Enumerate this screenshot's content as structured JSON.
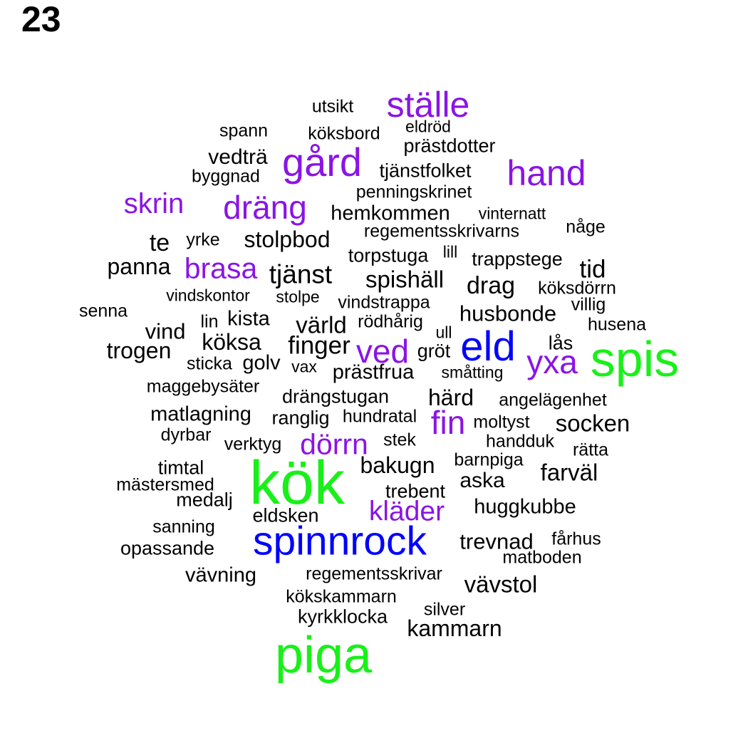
{
  "page_number": "23",
  "colors": {
    "black": "#000000",
    "purple": "#8a14e6",
    "blue": "#0000ff",
    "green": "#19f019"
  },
  "words": [
    {
      "text": "ställe",
      "color": "purple"
    },
    {
      "text": "utsikt",
      "color": "black"
    },
    {
      "text": "eldröd",
      "color": "black"
    },
    {
      "text": "spann",
      "color": "black"
    },
    {
      "text": "köksbord",
      "color": "black"
    },
    {
      "text": "prästdotter",
      "color": "black"
    },
    {
      "text": "vedträ",
      "color": "black"
    },
    {
      "text": "gård",
      "color": "purple"
    },
    {
      "text": "hand",
      "color": "purple"
    },
    {
      "text": "byggnad",
      "color": "black"
    },
    {
      "text": "tjänstfolket",
      "color": "black"
    },
    {
      "text": "penningskrinet",
      "color": "black"
    },
    {
      "text": "skrin",
      "color": "purple"
    },
    {
      "text": "dräng",
      "color": "purple"
    },
    {
      "text": "hemkommen",
      "color": "black"
    },
    {
      "text": "vinternatt",
      "color": "black"
    },
    {
      "text": "någe",
      "color": "black"
    },
    {
      "text": "regementsskrivarns",
      "color": "black"
    },
    {
      "text": "te",
      "color": "black"
    },
    {
      "text": "yrke",
      "color": "black"
    },
    {
      "text": "stolpbod",
      "color": "black"
    },
    {
      "text": "lill",
      "color": "black"
    },
    {
      "text": "torpstuga",
      "color": "black"
    },
    {
      "text": "trappstege",
      "color": "black"
    },
    {
      "text": "panna",
      "color": "black"
    },
    {
      "text": "brasa",
      "color": "purple"
    },
    {
      "text": "tjänst",
      "color": "black"
    },
    {
      "text": "spishäll",
      "color": "black"
    },
    {
      "text": "tid",
      "color": "black"
    },
    {
      "text": "drag",
      "color": "black"
    },
    {
      "text": "köksdörrn",
      "color": "black"
    },
    {
      "text": "vindskontor",
      "color": "black"
    },
    {
      "text": "stolpe",
      "color": "black"
    },
    {
      "text": "vindstrappa",
      "color": "black"
    },
    {
      "text": "villig",
      "color": "black"
    },
    {
      "text": "senna",
      "color": "black"
    },
    {
      "text": "husbonde",
      "color": "black"
    },
    {
      "text": "lin",
      "color": "black"
    },
    {
      "text": "kista",
      "color": "black"
    },
    {
      "text": "värld",
      "color": "black"
    },
    {
      "text": "rödhårig",
      "color": "black"
    },
    {
      "text": "husena",
      "color": "black"
    },
    {
      "text": "vind",
      "color": "black"
    },
    {
      "text": "köksa",
      "color": "black"
    },
    {
      "text": "ull",
      "color": "black"
    },
    {
      "text": "eld",
      "color": "blue"
    },
    {
      "text": "spis",
      "color": "green"
    },
    {
      "text": "lås",
      "color": "black"
    },
    {
      "text": "trogen",
      "color": "black"
    },
    {
      "text": "finger",
      "color": "black"
    },
    {
      "text": "ved",
      "color": "purple"
    },
    {
      "text": "gröt",
      "color": "black"
    },
    {
      "text": "yxa",
      "color": "purple"
    },
    {
      "text": "sticka",
      "color": "black"
    },
    {
      "text": "golv",
      "color": "black"
    },
    {
      "text": "vax",
      "color": "black"
    },
    {
      "text": "prästfrua",
      "color": "black"
    },
    {
      "text": "småtting",
      "color": "black"
    },
    {
      "text": "maggebysäter",
      "color": "black"
    },
    {
      "text": "drängstugan",
      "color": "black"
    },
    {
      "text": "härd",
      "color": "black"
    },
    {
      "text": "angelägenhet",
      "color": "black"
    },
    {
      "text": "matlagning",
      "color": "black"
    },
    {
      "text": "ranglig",
      "color": "black"
    },
    {
      "text": "hundratal",
      "color": "black"
    },
    {
      "text": "fin",
      "color": "purple"
    },
    {
      "text": "moltyst",
      "color": "black"
    },
    {
      "text": "socken",
      "color": "black"
    },
    {
      "text": "dyrbar",
      "color": "black"
    },
    {
      "text": "verktyg",
      "color": "black"
    },
    {
      "text": "dörrn",
      "color": "purple"
    },
    {
      "text": "stek",
      "color": "black"
    },
    {
      "text": "handduk",
      "color": "black"
    },
    {
      "text": "rätta",
      "color": "black"
    },
    {
      "text": "timtal",
      "color": "black"
    },
    {
      "text": "kök",
      "color": "green"
    },
    {
      "text": "bakugn",
      "color": "black"
    },
    {
      "text": "barnpiga",
      "color": "black"
    },
    {
      "text": "farväl",
      "color": "black"
    },
    {
      "text": "mästersmed",
      "color": "black"
    },
    {
      "text": "aska",
      "color": "black"
    },
    {
      "text": "medalj",
      "color": "black"
    },
    {
      "text": "trebent",
      "color": "black"
    },
    {
      "text": "huggkubbe",
      "color": "black"
    },
    {
      "text": "kläder",
      "color": "purple"
    },
    {
      "text": "eldsken",
      "color": "black"
    },
    {
      "text": "sanning",
      "color": "black"
    },
    {
      "text": "spinnrock",
      "color": "blue"
    },
    {
      "text": "fårhus",
      "color": "black"
    },
    {
      "text": "trevnad",
      "color": "black"
    },
    {
      "text": "opassande",
      "color": "black"
    },
    {
      "text": "matboden",
      "color": "black"
    },
    {
      "text": "vävning",
      "color": "black"
    },
    {
      "text": "regementsskrivar",
      "color": "black"
    },
    {
      "text": "vävstol",
      "color": "black"
    },
    {
      "text": "kökskammarn",
      "color": "black"
    },
    {
      "text": "silver",
      "color": "black"
    },
    {
      "text": "kyrkklocka",
      "color": "black"
    },
    {
      "text": "kammarn",
      "color": "black"
    },
    {
      "text": "piga",
      "color": "green"
    }
  ]
}
